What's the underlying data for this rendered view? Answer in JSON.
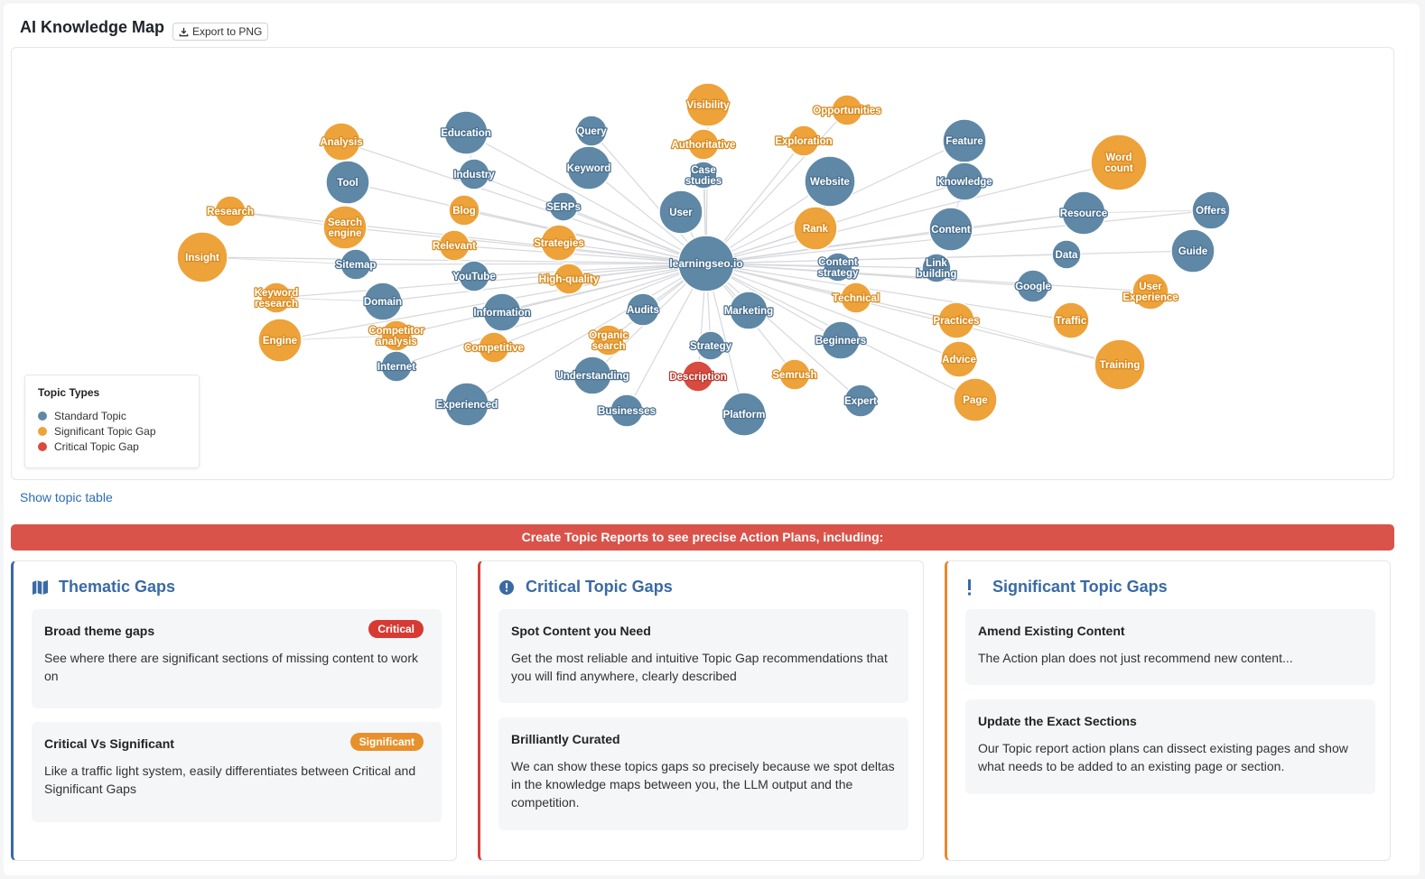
{
  "header": {
    "title": "AI Knowledge Map",
    "export_label": "Export to PNG"
  },
  "colors": {
    "standard": "#5f88a6",
    "significant": "#eea23a",
    "critical": "#d94a3f",
    "banner": "#d9534a",
    "link": "#2d6cb3"
  },
  "graph": {
    "center": "learningseo.io",
    "nodes": [
      {
        "label": "learningseo.io",
        "type": "standard"
      },
      {
        "label": "Visibility",
        "type": "significant"
      },
      {
        "label": "Authoritative",
        "type": "significant"
      },
      {
        "label": "Case studies",
        "type": "standard"
      },
      {
        "label": "User",
        "type": "standard"
      },
      {
        "label": "Opportunities",
        "type": "significant"
      },
      {
        "label": "Exploration",
        "type": "significant"
      },
      {
        "label": "Website",
        "type": "standard"
      },
      {
        "label": "Rank",
        "type": "significant"
      },
      {
        "label": "Feature",
        "type": "standard"
      },
      {
        "label": "Knowledge",
        "type": "standard"
      },
      {
        "label": "Word count",
        "type": "significant"
      },
      {
        "label": "Content",
        "type": "standard"
      },
      {
        "label": "Resource",
        "type": "standard"
      },
      {
        "label": "Offers",
        "type": "standard"
      },
      {
        "label": "Guide",
        "type": "standard"
      },
      {
        "label": "Data",
        "type": "standard"
      },
      {
        "label": "Content strategy",
        "type": "standard"
      },
      {
        "label": "Link building",
        "type": "standard"
      },
      {
        "label": "Google",
        "type": "standard"
      },
      {
        "label": "User Experience",
        "type": "significant"
      },
      {
        "label": "Technical",
        "type": "significant"
      },
      {
        "label": "Practices",
        "type": "significant"
      },
      {
        "label": "Traffic",
        "type": "significant"
      },
      {
        "label": "Advice",
        "type": "significant"
      },
      {
        "label": "Training",
        "type": "significant"
      },
      {
        "label": "Page",
        "type": "significant"
      },
      {
        "label": "Beginners",
        "type": "standard"
      },
      {
        "label": "Expert",
        "type": "standard"
      },
      {
        "label": "Marketing",
        "type": "standard"
      },
      {
        "label": "Semrush",
        "type": "significant"
      },
      {
        "label": "Strategy",
        "type": "standard"
      },
      {
        "label": "Platform",
        "type": "standard"
      },
      {
        "label": "Description",
        "type": "critical"
      },
      {
        "label": "Businesses",
        "type": "standard"
      },
      {
        "label": "Understanding",
        "type": "standard"
      },
      {
        "label": "Audits",
        "type": "standard"
      },
      {
        "label": "Organic search",
        "type": "significant"
      },
      {
        "label": "Competitive",
        "type": "significant"
      },
      {
        "label": "Experienced",
        "type": "standard"
      },
      {
        "label": "Information",
        "type": "standard"
      },
      {
        "label": "High-quality",
        "type": "significant"
      },
      {
        "label": "YouTube",
        "type": "standard"
      },
      {
        "label": "Strategies",
        "type": "significant"
      },
      {
        "label": "SERPs",
        "type": "standard"
      },
      {
        "label": "Relevant",
        "type": "significant"
      },
      {
        "label": "Blog",
        "type": "significant"
      },
      {
        "label": "Keyword",
        "type": "standard"
      },
      {
        "label": "Query",
        "type": "standard"
      },
      {
        "label": "Industry",
        "type": "standard"
      },
      {
        "label": "Education",
        "type": "standard"
      },
      {
        "label": "Analysis",
        "type": "significant"
      },
      {
        "label": "Tool",
        "type": "standard"
      },
      {
        "label": "Research",
        "type": "significant"
      },
      {
        "label": "Search engine",
        "type": "significant"
      },
      {
        "label": "Insight",
        "type": "significant"
      },
      {
        "label": "Sitemap",
        "type": "standard"
      },
      {
        "label": "Keyword research",
        "type": "significant"
      },
      {
        "label": "Domain",
        "type": "standard"
      },
      {
        "label": "Competitor analysis",
        "type": "significant"
      },
      {
        "label": "Engine",
        "type": "significant"
      },
      {
        "label": "Internet",
        "type": "standard"
      }
    ]
  },
  "legend": {
    "title": "Topic Types",
    "items": [
      {
        "label": "Standard Topic",
        "color": "#5f88a6"
      },
      {
        "label": "Significant Topic Gap",
        "color": "#eea23a"
      },
      {
        "label": "Critical Topic Gap",
        "color": "#d94a3f"
      }
    ]
  },
  "show_table_label": "Show topic table",
  "banner_text": "Create Topic Reports to see precise Action Plans, including:",
  "cards": [
    {
      "title": "Thematic Gaps",
      "icon": "map-icon",
      "items": [
        {
          "title": "Broad theme gaps",
          "badge": "Critical",
          "text": "See where there are significant sections of missing content to work on"
        },
        {
          "title": "Critical Vs Significant",
          "badge": "Significant",
          "text": "Like a traffic light system, easily differentiates between Critical and Significant Gaps"
        }
      ]
    },
    {
      "title": "Critical Topic Gaps",
      "icon": "exclamation-circle-icon",
      "items": [
        {
          "title": "Spot Content you Need",
          "text": "Get the most reliable and intuitive Topic Gap recommendations that you will find anywhere, clearly described"
        },
        {
          "title": "Brilliantly Curated",
          "text": "We can show these topics gaps so precisely because we spot deltas in the knowledge maps between you, the LLM output and the competition."
        }
      ]
    },
    {
      "title": "Significant Topic Gaps",
      "icon": "exclamation-icon",
      "items": [
        {
          "title": "Amend Existing Content",
          "text": "The Action plan does not just recommend new content..."
        },
        {
          "title": "Update the Exact Sections",
          "text": "Our Topic report action plans can dissect existing pages and show what needs to be added to an existing page or section."
        }
      ]
    }
  ]
}
